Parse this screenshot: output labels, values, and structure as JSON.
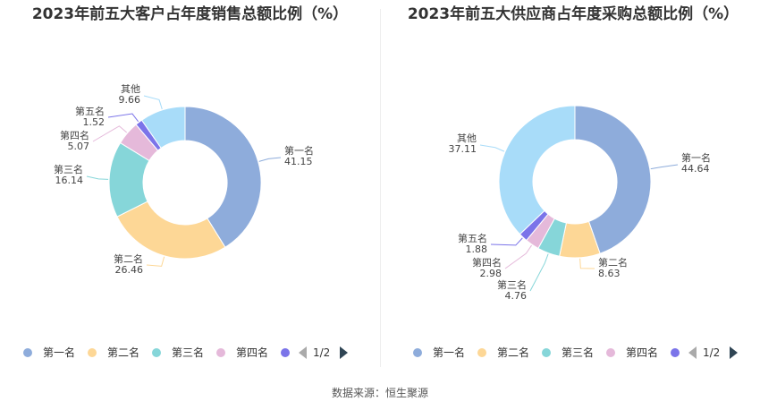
{
  "chart_data": [
    {
      "type": "pie",
      "title": "2023年前五大客户占年度销售总额比例（%）",
      "categories": [
        "第一名",
        "第二名",
        "第三名",
        "第四名",
        "第五名",
        "其他"
      ],
      "values": [
        41.15,
        26.46,
        16.14,
        5.07,
        1.52,
        9.66
      ],
      "value_labels": [
        "41.15",
        "26.46",
        "16.14",
        "5.07",
        "1.52",
        "9.66"
      ],
      "colors": [
        "#8eacdb",
        "#fdd796",
        "#86d6d9",
        "#e5b9da",
        "#7b74e9",
        "#a8dcf9"
      ],
      "legend": [
        "第一名",
        "第二名",
        "第三名",
        "第四名",
        "第五名"
      ],
      "legend_placement": "bottom",
      "pager": "1/2"
    },
    {
      "type": "pie",
      "title": "2023年前五大供应商占年度采购总额比例（%）",
      "categories": [
        "第一名",
        "第二名",
        "第三名",
        "第四名",
        "第五名",
        "其他"
      ],
      "values": [
        44.64,
        8.63,
        4.76,
        2.98,
        1.88,
        37.11
      ],
      "value_labels": [
        "44.64",
        "8.63",
        "4.76",
        "2.98",
        "1.88",
        "37.11"
      ],
      "colors": [
        "#8eacdb",
        "#fdd796",
        "#86d6d9",
        "#e5b9da",
        "#7b74e9",
        "#a8dcf9"
      ],
      "legend": [
        "第一名",
        "第二名",
        "第三名",
        "第四名",
        "第五名"
      ],
      "legend_placement": "bottom",
      "pager": "1/2"
    }
  ],
  "source": "数据来源：恒生聚源"
}
